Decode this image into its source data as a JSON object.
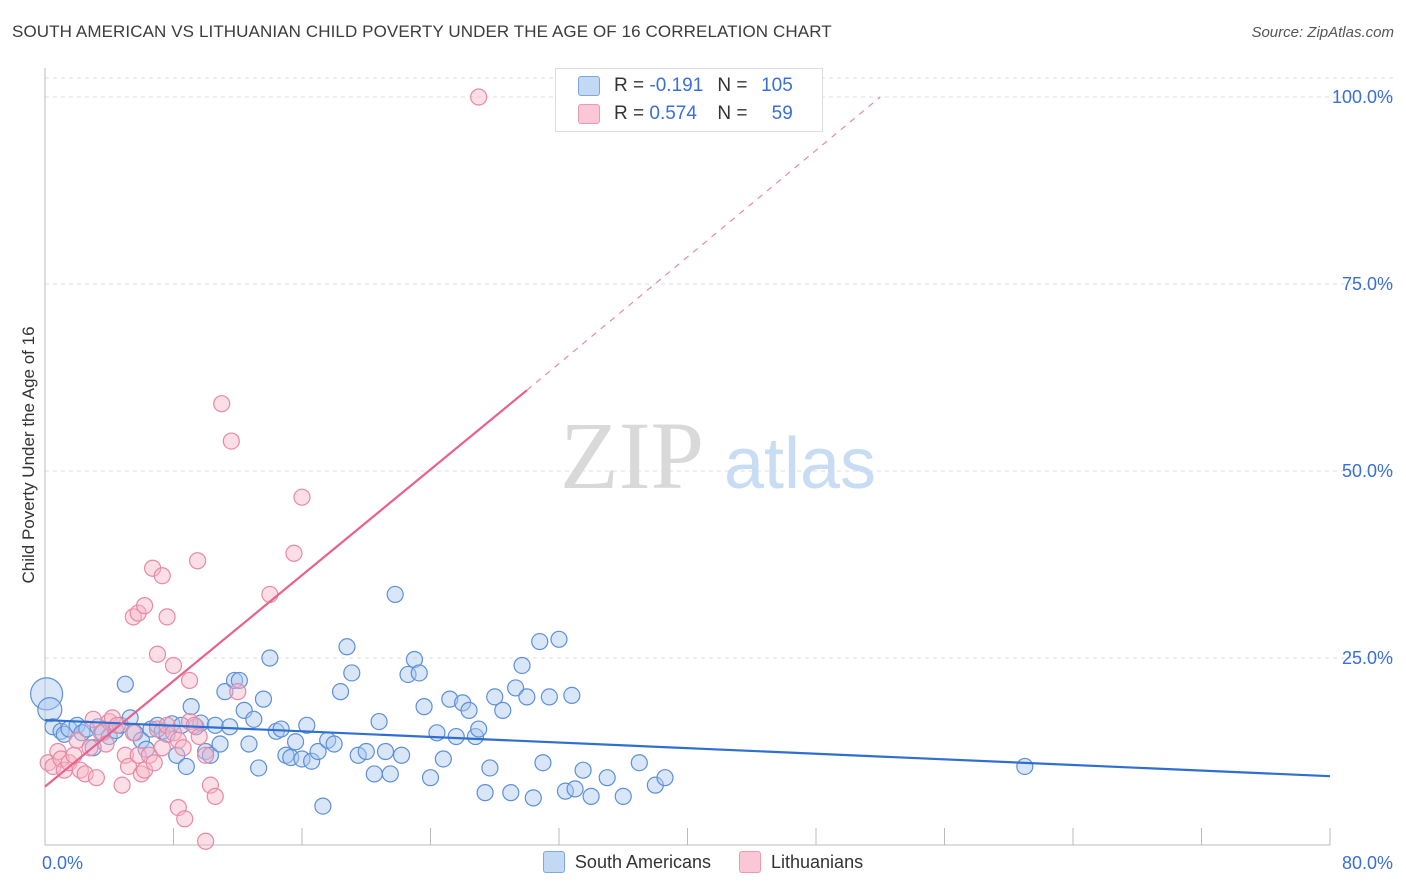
{
  "title": "SOUTH AMERICAN VS LITHUANIAN CHILD POVERTY UNDER THE AGE OF 16 CORRELATION CHART",
  "source": "Source: ZipAtlas.com",
  "watermark": {
    "zip": "ZIP",
    "atlas": "atlas"
  },
  "legend": {
    "r_label": "R =",
    "n_label": "N =",
    "rows": [
      {
        "series": "South Americans",
        "r": "-0.191",
        "n": "105"
      },
      {
        "series": "Lithuanians",
        "r": "0.574",
        "n": "59"
      }
    ]
  },
  "colors": {
    "blue_fill": "#a9c8f0",
    "blue_stroke": "#5d90d8",
    "blue_line": "#2e6fd1",
    "pink_fill": "#f6b6c8",
    "pink_stroke": "#e889a6",
    "pink_line": "#e8628c",
    "tick_text": "#3a6fd8",
    "grid": "#dddddd"
  },
  "chart_data": {
    "type": "scatter",
    "title": "SOUTH AMERICAN VS LITHUANIAN CHILD POVERTY UNDER THE AGE OF 16 CORRELATION CHART",
    "xlabel": "",
    "ylabel": "Child Poverty Under the Age of 16",
    "xlim": [
      0,
      80
    ],
    "ylim": [
      0,
      100
    ],
    "x_ticks": [
      0,
      80
    ],
    "x_tick_labels": [
      "0.0%",
      "80.0%"
    ],
    "y_ticks": [
      25,
      50,
      75,
      100
    ],
    "y_tick_labels": [
      "25.0%",
      "50.0%",
      "75.0%",
      "100.0%"
    ],
    "grid": true,
    "legend_position": "top-center",
    "series": [
      {
        "name": "South Americans",
        "r": -0.191,
        "n": 105,
        "trend": {
          "x0": 0,
          "y0": 16.7,
          "x1": 80,
          "y1": 9.2
        },
        "points": [
          [
            0.1,
            20.2
          ],
          [
            0.3,
            18.1
          ],
          [
            0.5,
            15.8
          ],
          [
            1.0,
            15.2
          ],
          [
            1.2,
            14.8
          ],
          [
            1.5,
            15.5
          ],
          [
            2.0,
            16.0
          ],
          [
            2.3,
            15.0
          ],
          [
            2.6,
            15.5
          ],
          [
            3.0,
            13.0
          ],
          [
            3.3,
            15.8
          ],
          [
            3.6,
            15.0
          ],
          [
            4.0,
            14.5
          ],
          [
            4.4,
            15.3
          ],
          [
            4.7,
            16.0
          ],
          [
            5.0,
            21.5
          ],
          [
            5.3,
            17.0
          ],
          [
            5.6,
            15.0
          ],
          [
            6.0,
            14.0
          ],
          [
            6.3,
            12.8
          ],
          [
            6.6,
            15.5
          ],
          [
            7.0,
            16.0
          ],
          [
            7.3,
            15.2
          ],
          [
            7.6,
            14.8
          ],
          [
            7.9,
            16.2
          ],
          [
            8.2,
            12.0
          ],
          [
            8.5,
            16.0
          ],
          [
            8.8,
            10.5
          ],
          [
            9.1,
            18.5
          ],
          [
            9.4,
            15.8
          ],
          [
            9.7,
            16.3
          ],
          [
            10.0,
            12.5
          ],
          [
            10.3,
            12.0
          ],
          [
            10.6,
            16.0
          ],
          [
            10.9,
            13.5
          ],
          [
            11.2,
            20.5
          ],
          [
            11.5,
            15.8
          ],
          [
            11.8,
            22.0
          ],
          [
            12.1,
            22.0
          ],
          [
            12.4,
            18.0
          ],
          [
            12.7,
            13.5
          ],
          [
            13.0,
            16.8
          ],
          [
            13.3,
            10.3
          ],
          [
            13.6,
            19.5
          ],
          [
            14.0,
            25.0
          ],
          [
            14.4,
            15.2
          ],
          [
            14.7,
            15.5
          ],
          [
            15.0,
            12.0
          ],
          [
            15.3,
            11.7
          ],
          [
            15.6,
            13.8
          ],
          [
            16.0,
            11.5
          ],
          [
            16.3,
            16.0
          ],
          [
            16.6,
            11.2
          ],
          [
            17.0,
            12.5
          ],
          [
            17.3,
            5.2
          ],
          [
            17.6,
            14.0
          ],
          [
            18.0,
            13.5
          ],
          [
            18.4,
            20.5
          ],
          [
            18.8,
            26.5
          ],
          [
            19.1,
            23.0
          ],
          [
            19.5,
            12.0
          ],
          [
            20.0,
            12.5
          ],
          [
            20.5,
            9.5
          ],
          [
            20.8,
            16.5
          ],
          [
            21.2,
            12.5
          ],
          [
            21.5,
            9.5
          ],
          [
            21.8,
            33.5
          ],
          [
            22.2,
            12.0
          ],
          [
            22.6,
            22.8
          ],
          [
            23.0,
            24.8
          ],
          [
            23.3,
            23.0
          ],
          [
            23.6,
            18.5
          ],
          [
            24.0,
            9.0
          ],
          [
            24.4,
            15.0
          ],
          [
            24.8,
            11.5
          ],
          [
            25.2,
            19.5
          ],
          [
            25.6,
            14.5
          ],
          [
            26.0,
            19.0
          ],
          [
            26.4,
            18.0
          ],
          [
            26.8,
            14.5
          ],
          [
            27.0,
            15.5
          ],
          [
            27.4,
            7.0
          ],
          [
            27.7,
            10.3
          ],
          [
            28.0,
            19.8
          ],
          [
            28.5,
            18.0
          ],
          [
            29.0,
            7.0
          ],
          [
            29.3,
            21.0
          ],
          [
            29.7,
            24.0
          ],
          [
            30.0,
            19.8
          ],
          [
            30.4,
            6.3
          ],
          [
            30.8,
            27.2
          ],
          [
            31.0,
            11.0
          ],
          [
            31.4,
            19.8
          ],
          [
            32.0,
            27.5
          ],
          [
            32.4,
            7.2
          ],
          [
            32.8,
            20.0
          ],
          [
            33.0,
            7.5
          ],
          [
            33.5,
            10.0
          ],
          [
            34.0,
            6.5
          ],
          [
            35.0,
            9.0
          ],
          [
            36.0,
            6.5
          ],
          [
            37.0,
            11.0
          ],
          [
            38.0,
            8.0
          ],
          [
            38.6,
            9.0
          ],
          [
            61.0,
            10.5
          ]
        ]
      },
      {
        "name": "Lithuanians",
        "r": 0.574,
        "n": 59,
        "trend": {
          "x0": 0,
          "y0": 7.8,
          "x1": 30,
          "y1": 60.8,
          "dash_to_x": 52,
          "dash_to_y": 100
        },
        "points": [
          [
            0.2,
            11.0
          ],
          [
            0.5,
            10.5
          ],
          [
            0.8,
            12.5
          ],
          [
            1.0,
            11.5
          ],
          [
            1.2,
            10.0
          ],
          [
            1.5,
            11.0
          ],
          [
            1.8,
            12.0
          ],
          [
            2.0,
            14.0
          ],
          [
            2.2,
            10.0
          ],
          [
            2.5,
            9.5
          ],
          [
            2.8,
            13.0
          ],
          [
            3.0,
            16.8
          ],
          [
            3.2,
            9.0
          ],
          [
            3.5,
            15.0
          ],
          [
            3.8,
            13.5
          ],
          [
            4.0,
            16.5
          ],
          [
            4.2,
            17.0
          ],
          [
            4.5,
            16.0
          ],
          [
            4.8,
            8.0
          ],
          [
            5.0,
            12.0
          ],
          [
            5.2,
            10.5
          ],
          [
            5.5,
            15.0
          ],
          [
            5.8,
            12.0
          ],
          [
            6.0,
            9.5
          ],
          [
            6.2,
            10.0
          ],
          [
            6.5,
            12.0
          ],
          [
            6.8,
            11.0
          ],
          [
            7.0,
            15.5
          ],
          [
            7.3,
            13.0
          ],
          [
            7.6,
            16.0
          ],
          [
            8.0,
            15.0
          ],
          [
            8.3,
            14.0
          ],
          [
            8.6,
            13.0
          ],
          [
            9.0,
            16.5
          ],
          [
            9.3,
            16.0
          ],
          [
            9.6,
            14.5
          ],
          [
            10.0,
            12.0
          ],
          [
            10.3,
            8.0
          ],
          [
            5.5,
            30.5
          ],
          [
            5.8,
            31.0
          ],
          [
            6.2,
            32.0
          ],
          [
            6.7,
            37.0
          ],
          [
            7.0,
            25.5
          ],
          [
            7.3,
            36.0
          ],
          [
            7.6,
            30.5
          ],
          [
            8.0,
            24.0
          ],
          [
            8.3,
            5.0
          ],
          [
            8.7,
            3.5
          ],
          [
            9.0,
            22.0
          ],
          [
            9.5,
            38.0
          ],
          [
            10.0,
            0.5
          ],
          [
            10.6,
            6.5
          ],
          [
            11.0,
            59.0
          ],
          [
            11.6,
            54.0
          ],
          [
            12.0,
            20.5
          ],
          [
            14.0,
            33.5
          ],
          [
            15.5,
            39.0
          ],
          [
            16.0,
            46.5
          ],
          [
            27.0,
            100.0
          ]
        ]
      }
    ]
  }
}
